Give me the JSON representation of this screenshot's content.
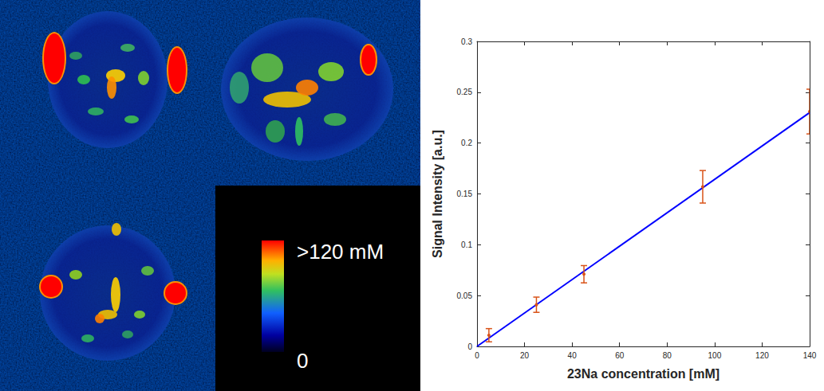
{
  "image_panel": {
    "colorbar": {
      "range": [
        0,
        120
      ],
      "ticks": [
        {
          "value": 120,
          "label": ">120 mM"
        },
        {
          "value": 0,
          "label": "0"
        }
      ]
    }
  },
  "chart_data": {
    "type": "scatter",
    "xlabel": "23Na concentration [mM]",
    "ylabel": "Signal Intensity [a.u.]",
    "x": [
      5,
      25,
      45,
      95,
      140
    ],
    "values": [
      0.011,
      0.041,
      0.071,
      0.157,
      0.231
    ],
    "errors": [
      0.0065,
      0.0075,
      0.0085,
      0.016,
      0.022
    ],
    "color": "#d95319",
    "marker": "point",
    "fit": {
      "type": "line",
      "x": [
        0,
        140
      ],
      "values": [
        0,
        0.23
      ],
      "color": "#0000ff"
    },
    "xlim": [
      0,
      140
    ],
    "xticks": [
      0,
      20,
      40,
      60,
      80,
      100,
      120,
      140
    ],
    "ylim": [
      0,
      0.3
    ],
    "yticks": [
      0,
      0.05,
      0.1,
      0.15,
      0.2,
      0.25,
      0.3
    ],
    "grid": false
  }
}
